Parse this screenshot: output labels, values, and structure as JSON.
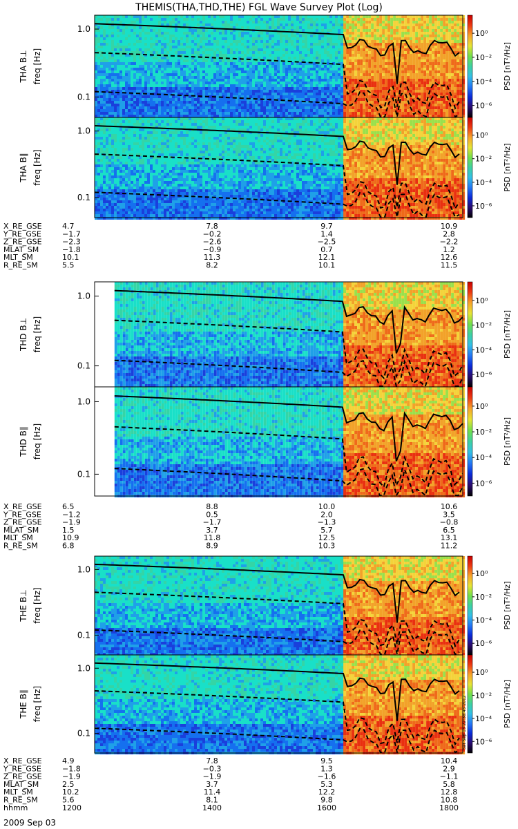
{
  "title": "THEMIS(THA,THD,THE) FGL Wave Survey Plot (Log)",
  "timestamp": "Sat Sep 15 22:38:45 2012",
  "colorbar": {
    "label": "PSD [nT²/Hz]",
    "ticks": [
      "10⁰",
      "10⁻²",
      "10⁻⁴",
      "10⁻⁶"
    ],
    "tick_exponents": [
      0,
      -2,
      -4,
      -6
    ],
    "range_log10": [
      -7,
      1.5
    ],
    "colors": [
      "#000000",
      "#2a0a6e",
      "#0a2ad8",
      "#2478f4",
      "#33c0e6",
      "#3ed1a0",
      "#72e04a",
      "#e6e436",
      "#f7a42a",
      "#ec3a12",
      "#c80000"
    ]
  },
  "spectrogram_colors": {
    "quiet": [
      "#19e0c8",
      "#34d5a6",
      "#1fa0e8",
      "#1570ef",
      "#1a3fdc"
    ],
    "active": [
      "#f2a229",
      "#ef6a1a",
      "#e93010",
      "#f4d33a",
      "#9ae04b"
    ]
  },
  "freq_ticks": [
    "1.0",
    "0.1"
  ],
  "freq_tick_values": [
    1.0,
    0.1
  ],
  "freq_range_hz": [
    0.05,
    1.6
  ],
  "panels": [
    {
      "probe": "THA",
      "component": "THA B⊥",
      "ylabel": "freq [Hz]"
    },
    {
      "probe": "THA",
      "component": "THA B∥",
      "ylabel": "freq [Hz]"
    },
    {
      "probe": "THD",
      "component": "THD B⊥",
      "ylabel": "freq [Hz]"
    },
    {
      "probe": "THD",
      "component": "THD B∥",
      "ylabel": "freq [Hz]"
    },
    {
      "probe": "THE",
      "component": "THE B⊥",
      "ylabel": "freq [Hz]"
    },
    {
      "probe": "THE",
      "component": "THE B∥",
      "ylabel": "freq [Hz]"
    }
  ],
  "ephemeris": [
    {
      "probe": "THA",
      "rows": [
        {
          "label": "X_RE_GSE",
          "values": [
            "4.7",
            "7.8",
            "9.7",
            "10.9"
          ]
        },
        {
          "label": "Y_RE_GSE",
          "values": [
            "−1.7",
            "−0.2",
            "1.4",
            "2.8"
          ]
        },
        {
          "label": "Z_RE_GSE",
          "values": [
            "−2.3",
            "−2.6",
            "−2.5",
            "−2.2"
          ]
        },
        {
          "label": "MLAT_SM",
          "values": [
            "−1.8",
            "−0.9",
            "0.7",
            "1.2"
          ]
        },
        {
          "label": "MLT_SM",
          "values": [
            "10.1",
            "11.3",
            "12.1",
            "12.6"
          ]
        },
        {
          "label": "R_RE_SM",
          "values": [
            "5.5",
            "8.2",
            "10.1",
            "11.5"
          ]
        }
      ]
    },
    {
      "probe": "THD",
      "rows": [
        {
          "label": "X_RE_GSE",
          "values": [
            "6.5",
            "8.8",
            "10.0",
            "10.6"
          ]
        },
        {
          "label": "Y_RE_GSE",
          "values": [
            "−1.2",
            "0.5",
            "2.0",
            "3.5"
          ]
        },
        {
          "label": "Z_RE_GSE",
          "values": [
            "−1.9",
            "−1.7",
            "−1.3",
            "−0.8"
          ]
        },
        {
          "label": "MLAT_SM",
          "values": [
            "1.5",
            "3.7",
            "5.7",
            "6.5"
          ]
        },
        {
          "label": "MLT_SM",
          "values": [
            "10.9",
            "11.8",
            "12.5",
            "13.1"
          ]
        },
        {
          "label": "R_RE_SM",
          "values": [
            "6.8",
            "8.9",
            "10.3",
            "11.2"
          ]
        }
      ]
    },
    {
      "probe": "THE",
      "rows": [
        {
          "label": "X_RE_GSE",
          "values": [
            "4.9",
            "7.8",
            "9.5",
            "10.4"
          ]
        },
        {
          "label": "Y_RE_GSE",
          "values": [
            "−1.8",
            "−0.3",
            "1.3",
            "2.9"
          ]
        },
        {
          "label": "Z_RE_GSE",
          "values": [
            "−1.9",
            "−1.9",
            "−1.6",
            "−1.1"
          ]
        },
        {
          "label": "MLAT_SM",
          "values": [
            "2.5",
            "3.7",
            "5.3",
            "5.8"
          ]
        },
        {
          "label": "MLT_SM",
          "values": [
            "10.2",
            "11.4",
            "12.2",
            "12.8"
          ]
        },
        {
          "label": "R_RE_SM",
          "values": [
            "5.6",
            "8.1",
            "9.8",
            "10.8"
          ]
        },
        {
          "label": "hhmm",
          "values": [
            "1200",
            "1400",
            "1600",
            "1800"
          ]
        }
      ]
    }
  ],
  "date_label": "2009 Sep 03",
  "chart_data": {
    "type": "heatmap",
    "title": "THEMIS(THA,THD,THE) FGL Wave Survey Plot (Log)",
    "x_ticks": [
      "1200",
      "1400",
      "1600",
      "1800"
    ],
    "x_ticks_hhmm": [
      1200,
      1400,
      1600,
      1800
    ],
    "x_range_hhmm": [
      1150,
      1800
    ],
    "ylabel": "freq [Hz]",
    "y_scale": "log",
    "y_range_hz": [
      0.05,
      1.6
    ],
    "y_ticks": [
      0.1,
      1.0
    ],
    "colorbar_label": "PSD [nT²/Hz]",
    "colorbar_scale": "log",
    "colorbar_ticks_log10": [
      0,
      -2,
      -4,
      -6
    ],
    "series": [
      {
        "name": "THA B⊥"
      },
      {
        "name": "THA B∥"
      },
      {
        "name": "THD B⊥"
      },
      {
        "name": "THD B∥"
      },
      {
        "name": "THE B⊥"
      },
      {
        "name": "THE B∥"
      }
    ],
    "activity_onset_hhmm": 1600
  }
}
